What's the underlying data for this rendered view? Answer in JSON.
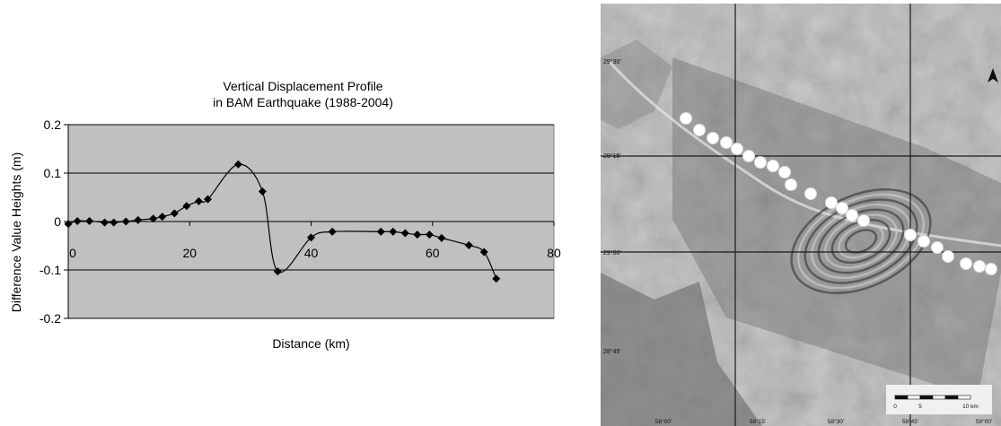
{
  "chart_data": {
    "type": "line",
    "title_lines": [
      "Vertical Displacement Profile",
      "in BAM Earthquake (1988-2004)"
    ],
    "xlabel": "Distance (km)",
    "ylabel": "Difference Value Heights (m)",
    "xlim": [
      0,
      80
    ],
    "ylim": [
      -0.2,
      0.2
    ],
    "xticks": [
      0,
      20,
      40,
      60,
      80
    ],
    "yticks": [
      0.2,
      0.1,
      0,
      -0.1,
      -0.2
    ],
    "ytick_labels": [
      "0.2",
      "0.1",
      "0",
      "-0.1",
      "-0.2"
    ],
    "xtick_labels": [
      "0",
      "20",
      "40",
      "60",
      "80"
    ],
    "grid": "horizontal",
    "plot_background": "#c0c0c0",
    "series": [
      {
        "marker": "diamond",
        "color": "#000000",
        "x": [
          0,
          1.5,
          3.5,
          6,
          7.5,
          9.5,
          11.5,
          14,
          15.5,
          17.5,
          19.5,
          21.5,
          23,
          28,
          32,
          34.5,
          40,
          43.5,
          51.5,
          53.5,
          55.5,
          57.5,
          59.5,
          61.5,
          66,
          68.5,
          70.5
        ],
        "y": [
          -0.005,
          0.001,
          0.001,
          -0.002,
          -0.002,
          0.0,
          0.003,
          0.006,
          0.01,
          0.017,
          0.032,
          0.042,
          0.046,
          0.118,
          0.062,
          -0.103,
          -0.033,
          -0.021,
          -0.021,
          -0.021,
          -0.024,
          -0.027,
          -0.027,
          -0.034,
          -0.049,
          -0.063,
          -0.118
        ]
      }
    ]
  },
  "map": {
    "lat_labels": [
      "29°30'",
      "29°15'",
      "29°00'",
      "28°45'"
    ],
    "lon_labels": [
      "58°00'",
      "58°15'",
      "58°30'",
      "58°45'",
      "59°00'"
    ],
    "scale_labels": [
      "0",
      "5",
      "10 km"
    ]
  }
}
